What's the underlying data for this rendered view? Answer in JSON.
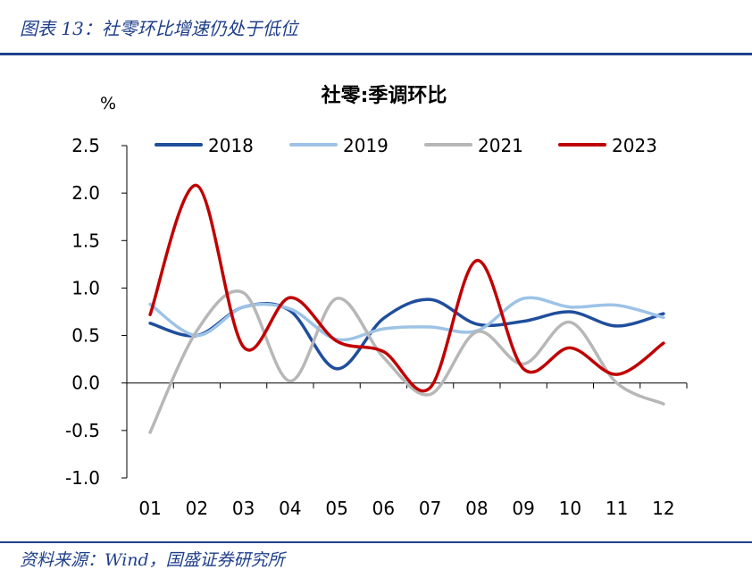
{
  "figure_title": "图表 13：社零环比增速仍处于低位",
  "source": "资料来源：Wind，国盛证券研究所",
  "chart_data": {
    "type": "line",
    "title": "社零:季调环比",
    "ylabel": "%",
    "xlabel": "",
    "categories": [
      "01",
      "02",
      "03",
      "04",
      "05",
      "06",
      "07",
      "08",
      "09",
      "10",
      "11",
      "12"
    ],
    "ylim": [
      -1.0,
      2.5
    ],
    "yticks": [
      "2.5",
      "2.0",
      "1.5",
      "1.0",
      "0.5",
      "0.0",
      "-0.5",
      "-1.0"
    ],
    "legend_position": "top",
    "grid": false,
    "series": [
      {
        "name": "2018",
        "color": "#1f4e9c",
        "values": [
          0.63,
          0.5,
          0.8,
          0.76,
          0.15,
          0.68,
          0.88,
          0.62,
          0.65,
          0.75,
          0.6,
          0.73
        ]
      },
      {
        "name": "2019",
        "color": "#9dc3e6",
        "values": [
          0.83,
          0.5,
          0.8,
          0.78,
          0.46,
          0.57,
          0.59,
          0.55,
          0.89,
          0.8,
          0.82,
          0.69
        ]
      },
      {
        "name": "2021",
        "color": "#b7b7b7",
        "values": [
          -0.52,
          0.55,
          0.95,
          0.02,
          0.89,
          0.27,
          -0.12,
          0.54,
          0.2,
          0.64,
          0.0,
          -0.22
        ]
      },
      {
        "name": "2023",
        "color": "#c00000",
        "values": [
          0.72,
          2.08,
          0.38,
          0.9,
          0.44,
          0.33,
          -0.05,
          1.29,
          0.15,
          0.37,
          0.09,
          0.42
        ]
      }
    ]
  }
}
